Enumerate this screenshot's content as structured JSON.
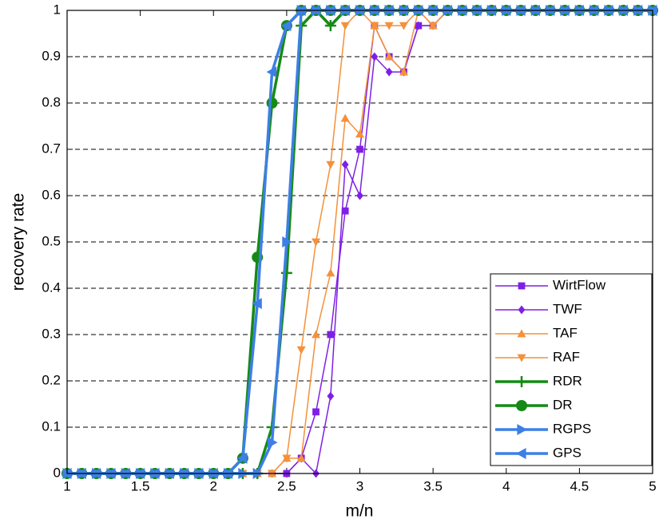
{
  "chart_data": {
    "type": "line",
    "xlabel": "m/n",
    "ylabel": "recovery rate",
    "x": [
      1,
      1.1,
      1.2,
      1.3,
      1.4,
      1.5,
      1.6,
      1.7,
      1.8,
      1.9,
      2,
      2.1,
      2.2,
      2.3,
      2.4,
      2.5,
      2.6,
      2.7,
      2.8,
      2.9,
      3,
      3.1,
      3.2,
      3.3,
      3.4,
      3.5,
      3.6,
      3.7,
      3.8,
      3.9,
      4,
      4.1,
      4.2,
      4.3,
      4.4,
      4.5,
      4.6,
      4.7,
      4.8,
      4.9,
      5
    ],
    "xlim": [
      1,
      5
    ],
    "xticks": [
      1,
      1.5,
      2,
      2.5,
      3,
      3.5,
      4,
      4.5,
      5
    ],
    "ylim": [
      0,
      1
    ],
    "yticks": [
      0,
      0.1,
      0.2,
      0.3,
      0.4,
      0.5,
      0.6,
      0.7,
      0.8,
      0.9,
      1
    ],
    "grid": true,
    "legend": "lower right",
    "series": [
      {
        "name": "WirtFlow",
        "color": "#7f1fe6",
        "marker": "square",
        "linewidth": 1.5,
        "values": [
          0,
          0,
          0,
          0,
          0,
          0,
          0,
          0,
          0,
          0,
          0,
          0,
          0,
          0,
          0,
          0,
          0.033,
          0.133,
          0.3,
          0.567,
          0.7,
          0.967,
          0.9,
          0.867,
          0.967,
          0.967,
          1,
          1,
          1,
          1,
          1,
          1,
          1,
          1,
          1,
          1,
          1,
          1,
          1,
          1,
          1
        ]
      },
      {
        "name": "TWF",
        "color": "#7f1fe6",
        "marker": "diamond",
        "linewidth": 1.5,
        "values": [
          0,
          0,
          0,
          0,
          0,
          0,
          0,
          0,
          0,
          0,
          0,
          0,
          0,
          0,
          0,
          0,
          0.033,
          0,
          0.167,
          0.667,
          0.6,
          0.9,
          0.867,
          0.867,
          0.967,
          0.967,
          1,
          1,
          1,
          1,
          1,
          1,
          1,
          1,
          1,
          1,
          1,
          1,
          1,
          1,
          1
        ]
      },
      {
        "name": "TAF",
        "color": "#f4913a",
        "marker": "triangle-up",
        "linewidth": 1.5,
        "values": [
          0,
          0,
          0,
          0,
          0,
          0,
          0,
          0,
          0,
          0,
          0,
          0,
          0,
          0,
          0,
          0.033,
          0.033,
          0.3,
          0.433,
          0.767,
          0.733,
          0.967,
          0.9,
          0.867,
          1,
          0.967,
          1,
          1,
          1,
          1,
          1,
          1,
          1,
          1,
          1,
          1,
          1,
          1,
          1,
          1,
          1
        ]
      },
      {
        "name": "RAF",
        "color": "#f4913a",
        "marker": "triangle-down",
        "linewidth": 1.5,
        "values": [
          0,
          0,
          0,
          0,
          0,
          0,
          0,
          0,
          0,
          0,
          0,
          0,
          0,
          0,
          0,
          0.033,
          0.267,
          0.5,
          0.667,
          0.967,
          1,
          0.967,
          0.967,
          0.967,
          1,
          0.967,
          1,
          1,
          1,
          1,
          1,
          1,
          1,
          1,
          1,
          1,
          1,
          1,
          1,
          1,
          1
        ]
      },
      {
        "name": "RDR",
        "color": "#158a15",
        "marker": "plus",
        "linewidth": 3.5,
        "values": [
          0,
          0,
          0,
          0,
          0,
          0,
          0,
          0,
          0,
          0,
          0,
          0,
          0,
          0,
          0.1,
          0.433,
          0.967,
          1,
          0.967,
          1,
          1,
          1,
          1,
          1,
          1,
          1,
          1,
          1,
          1,
          1,
          1,
          1,
          1,
          1,
          1,
          1,
          1,
          1,
          1,
          1,
          1
        ]
      },
      {
        "name": "DR",
        "color": "#158a15",
        "marker": "circle",
        "linewidth": 3.5,
        "values": [
          0,
          0,
          0,
          0,
          0,
          0,
          0,
          0,
          0,
          0,
          0,
          0,
          0.033,
          0.467,
          0.8,
          0.967,
          1,
          1,
          1,
          1,
          1,
          1,
          1,
          1,
          1,
          1,
          1,
          1,
          1,
          1,
          1,
          1,
          1,
          1,
          1,
          1,
          1,
          1,
          1,
          1,
          1
        ]
      },
      {
        "name": "RGPS",
        "color": "#3d7fe6",
        "marker": "triangle-right",
        "linewidth": 3.5,
        "values": [
          0,
          0,
          0,
          0,
          0,
          0,
          0,
          0,
          0,
          0,
          0,
          0,
          0,
          0,
          0.067,
          0.5,
          1,
          1,
          1,
          1,
          1,
          1,
          1,
          1,
          1,
          1,
          1,
          1,
          1,
          1,
          1,
          1,
          1,
          1,
          1,
          1,
          1,
          1,
          1,
          1,
          1
        ]
      },
      {
        "name": "GPS",
        "color": "#3d7fe6",
        "marker": "triangle-left",
        "linewidth": 3.5,
        "values": [
          0,
          0,
          0,
          0,
          0,
          0,
          0,
          0,
          0,
          0,
          0,
          0,
          0.033,
          0.367,
          0.867,
          0.967,
          1,
          1,
          1,
          1,
          1,
          1,
          1,
          1,
          1,
          1,
          1,
          1,
          1,
          1,
          1,
          1,
          1,
          1,
          1,
          1,
          1,
          1,
          1,
          1,
          1
        ]
      }
    ]
  }
}
